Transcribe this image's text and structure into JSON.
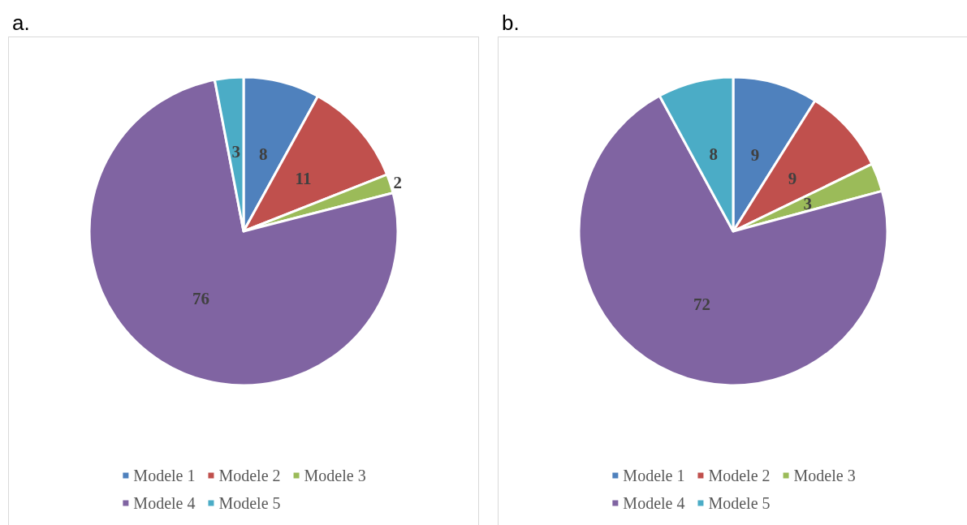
{
  "chart_data": [
    {
      "type": "pie",
      "title": "a.",
      "categories": [
        "Modele 1",
        "Modele 2",
        "Modele 3",
        "Modele 4",
        "Modele 5"
      ],
      "values": [
        8,
        11,
        2,
        76,
        3
      ],
      "colors": [
        "#4f81bd",
        "#c0504d",
        "#9bbb59",
        "#8064a2",
        "#4bacc6"
      ],
      "data_labels": true,
      "legend": "bottom"
    },
    {
      "type": "pie",
      "title": "b.",
      "categories": [
        "Modele 1",
        "Modele 2",
        "Modele 3",
        "Modele 4",
        "Modele 5"
      ],
      "values": [
        9,
        9,
        3,
        72,
        8
      ],
      "colors": [
        "#4f81bd",
        "#c0504d",
        "#9bbb59",
        "#8064a2",
        "#4bacc6"
      ],
      "data_labels": true,
      "legend": "bottom"
    }
  ]
}
